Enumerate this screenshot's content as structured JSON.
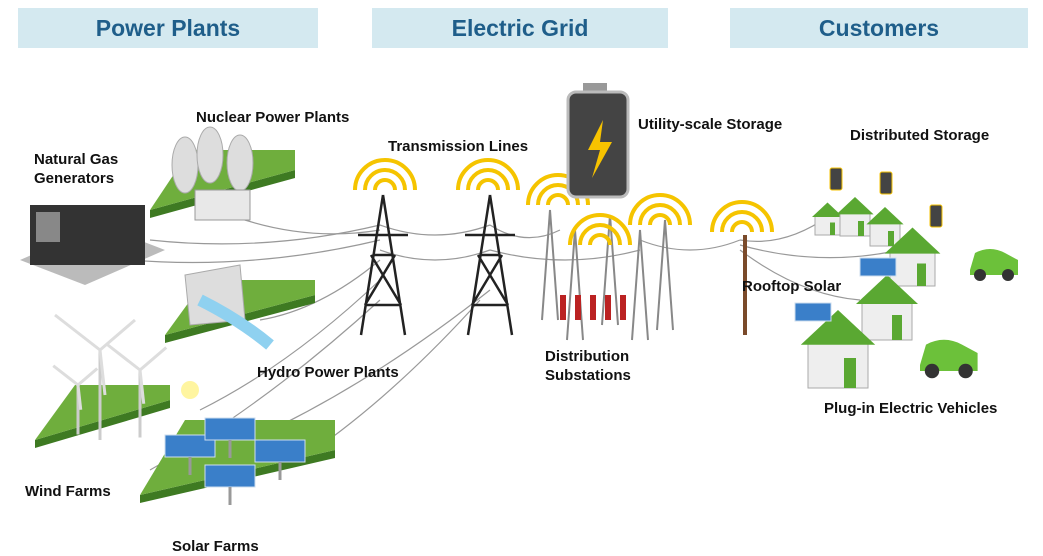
{
  "headers": [
    "Power Plants",
    "Electric Grid",
    "Customers"
  ],
  "labels": {
    "nuclear": "Nuclear Power Plants",
    "natural_gas": "Natural Gas Generators",
    "transmission": "Transmission Lines",
    "utility_storage": "Utility-scale Storage",
    "distributed_storage": "Distributed Storage",
    "rooftop_solar": "Rooftop Solar",
    "substations": "Distribution Substations",
    "hydro": "Hydro Power Plants",
    "ev": "Plug-in Electric Vehicles",
    "wind": "Wind Farms",
    "solar": "Solar Farms"
  }
}
